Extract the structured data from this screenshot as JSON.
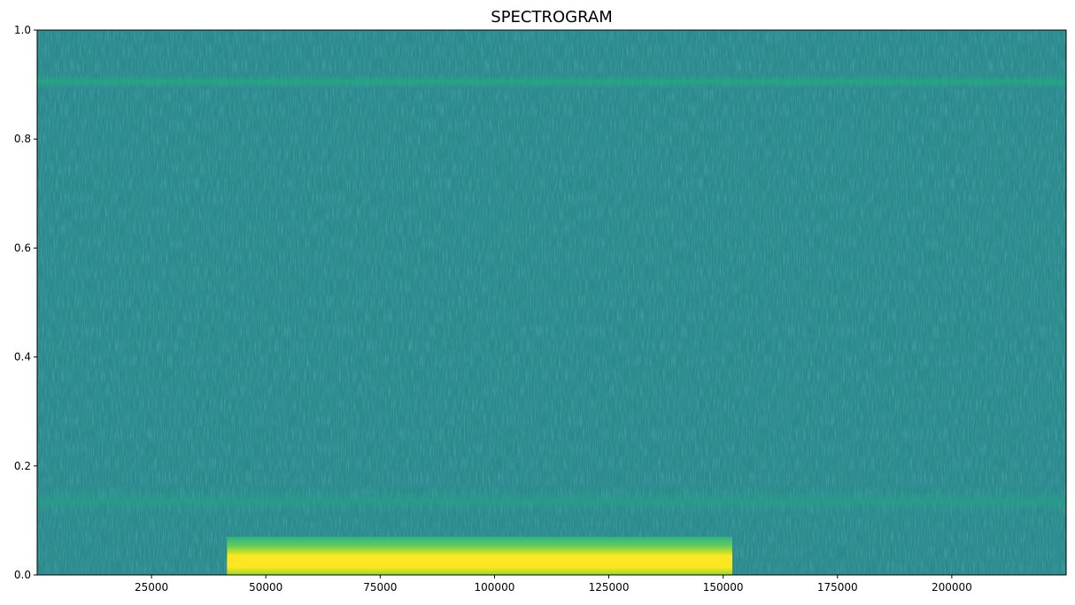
{
  "chart_data": {
    "type": "heatmap",
    "title": "SPECTROGRAM",
    "xlabel": "",
    "ylabel": "",
    "xlim": [
      0,
      225000
    ],
    "ylim": [
      0.0,
      1.0
    ],
    "x_ticks": [
      25000,
      50000,
      75000,
      100000,
      125000,
      150000,
      175000,
      200000
    ],
    "x_tick_labels": [
      "25000",
      "50000",
      "75000",
      "100000",
      "125000",
      "150000",
      "175000",
      "200000"
    ],
    "y_ticks": [
      0.0,
      0.2,
      0.4,
      0.6,
      0.8,
      1.0
    ],
    "y_tick_labels": [
      "0.0",
      "0.2",
      "0.4",
      "0.6",
      "0.8",
      "1.0"
    ],
    "colormap": "viridis",
    "background_color": "#2b8a8c",
    "features": [
      {
        "kind": "horizontal-band",
        "y_center": 0.905,
        "y_halfwidth": 0.012,
        "x_range": [
          0,
          225000
        ],
        "color": "#22a884",
        "intensity": "medium"
      },
      {
        "kind": "horizontal-band",
        "y_center": 0.135,
        "y_halfwidth": 0.02,
        "x_range": [
          0,
          225000
        ],
        "color": "#2a9f88",
        "intensity": "low"
      },
      {
        "kind": "burst",
        "x_range": [
          41500,
          152000
        ],
        "y_range": [
          0.0,
          0.07
        ],
        "peak_y": 0.025,
        "peak_color": "#fde725",
        "intensity": "high"
      }
    ],
    "grid": false,
    "legend": "none"
  }
}
